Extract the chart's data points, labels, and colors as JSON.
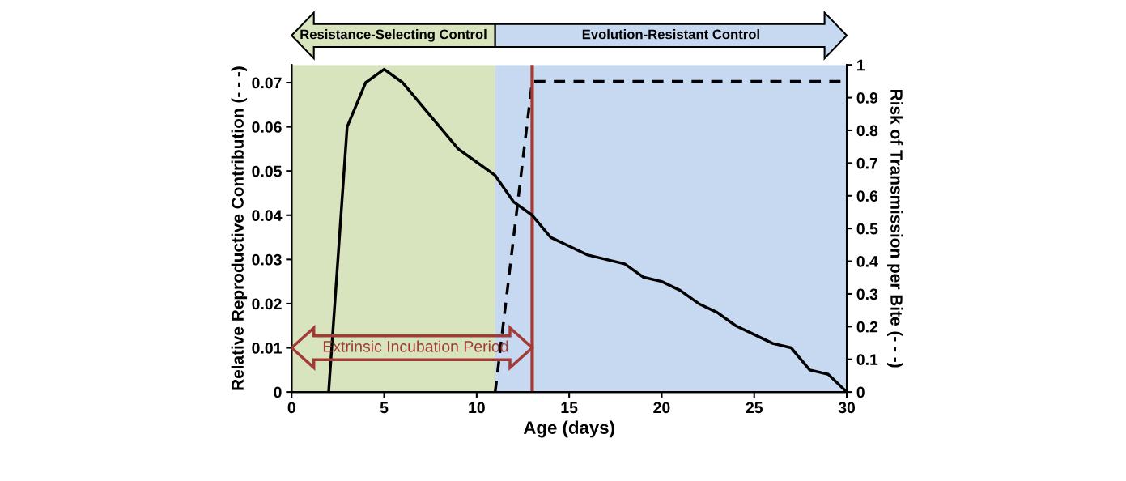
{
  "chart_data": {
    "type": "line",
    "xlabel": "Age (days)",
    "ylabel": "Relative Reproductive Contribution (- - -)",
    "y2label": "Risk of Transmission per Bite (- - -)",
    "series": [
      {
        "color": "#000000",
        "line_style": "solid",
        "x": [
          2,
          3,
          4,
          5,
          6,
          7,
          8,
          9,
          10,
          11,
          12,
          13,
          14,
          15,
          16,
          17,
          18,
          19,
          20,
          21,
          22,
          23,
          24,
          25,
          26,
          27,
          28,
          29,
          30
        ],
        "values": [
          0,
          0.06,
          0.07,
          0.073,
          0.07,
          0.065,
          0.06,
          0.055,
          0.052,
          0.049,
          0.043,
          0.04,
          0.035,
          0.033,
          0.031,
          0.03,
          0.029,
          0.026,
          0.025,
          0.023,
          0.02,
          0.018,
          0.015,
          0.013,
          0.011,
          0.01,
          0.005,
          0.004,
          0
        ]
      },
      {
        "color": "#000000",
        "line_style": "dashed",
        "axis": "y2",
        "x": [
          11,
          13,
          30
        ],
        "values": [
          0,
          0.95,
          0.95
        ]
      }
    ],
    "xlim": [
      0,
      30
    ],
    "xticks": [
      0,
      5,
      10,
      15,
      20,
      25,
      30
    ],
    "ylim": [
      0,
      0.074
    ],
    "yticks": [
      0,
      0.01,
      0.02,
      0.03,
      0.04,
      0.05,
      0.06,
      0.07
    ],
    "y2lim": [
      0,
      1
    ],
    "y2ticks": [
      0,
      0.1,
      0.2,
      0.3,
      0.4,
      0.5,
      0.6,
      0.7,
      0.8,
      0.9,
      1
    ],
    "bands": [
      {
        "axis": "x",
        "from": 0,
        "to": 11,
        "label": "Resistance-Selecting Control",
        "color": "#d7e4bd"
      },
      {
        "axis": "x",
        "from": 11,
        "to": 30,
        "label": "Evolution-Resistant Control",
        "color": "#c6d9f1"
      }
    ],
    "ref_lines": [
      {
        "axis": "x",
        "value": 13,
        "color": "#a33a36",
        "line_style": "solid"
      }
    ],
    "annotations": [
      "Extrinsic Incubation Period"
    ],
    "grid": false,
    "legend": false,
    "marker": "none"
  }
}
